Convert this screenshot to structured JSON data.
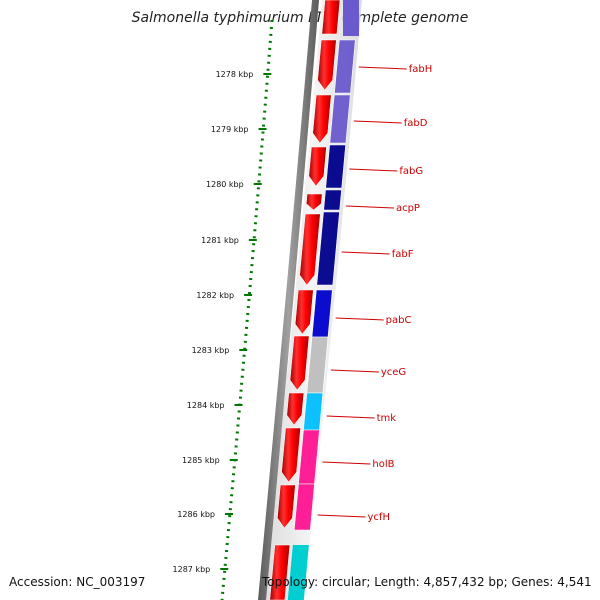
{
  "title": "Salmonella typhimurium LT2, complete genome",
  "accession": "Accession: NC_003197",
  "stats": "Topology: circular; Length: 4,857,432 bp; Genes: 4,541",
  "ticks": [
    "1278 kbp",
    "1279 kbp",
    "1280 kbp",
    "1281 kbp",
    "1282 kbp",
    "1283 kbp",
    "1284 kbp",
    "1285 kbp",
    "1286 kbp",
    "1287 kbp"
  ],
  "genes": [
    {
      "name": "fabH",
      "color": "#6a5acd"
    },
    {
      "name": "fabD",
      "color": "#6a5acd"
    },
    {
      "name": "fabG",
      "color": "#00008b"
    },
    {
      "name": "acpP",
      "color": "#00008b"
    },
    {
      "name": "fabF",
      "color": "#00008b"
    },
    {
      "name": "pabC",
      "color": "#0000cd"
    },
    {
      "name": "yceG",
      "color": "#bebebe"
    },
    {
      "name": "tmk",
      "color": "#00bfff"
    },
    {
      "name": "holB",
      "color": "#ff1493"
    },
    {
      "name": "ycfH",
      "color": "#ff1493"
    }
  ],
  "colors": {
    "ticks": "#007700",
    "cds_arrow": "#ff0000",
    "backbone": "#808080",
    "gene_label": "#cc0000",
    "cyan_feature": "#00ced1"
  }
}
